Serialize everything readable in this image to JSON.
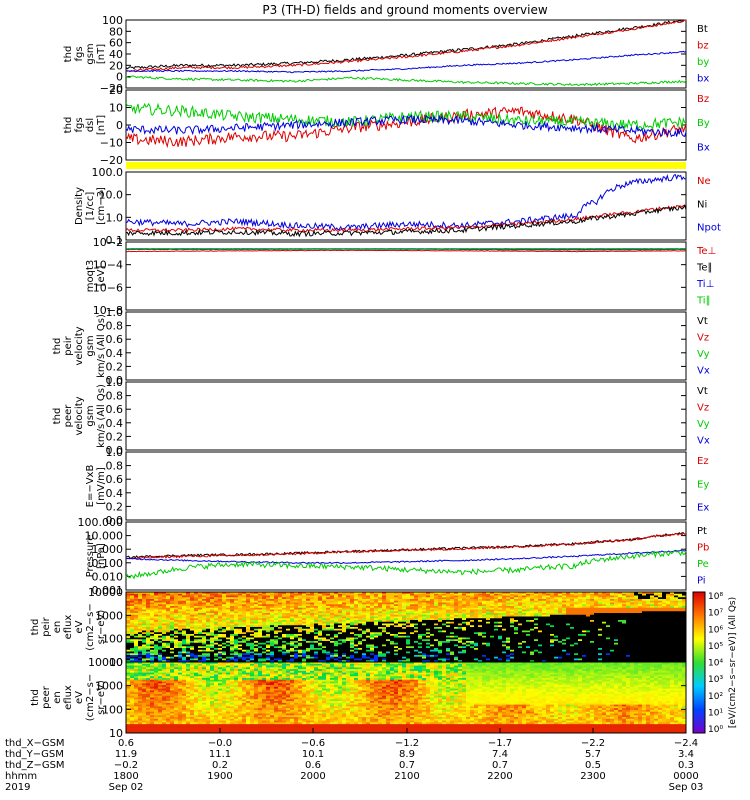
{
  "chart_data": {
    "type": "line",
    "title": "P3 (TH-D) fields and ground moments overview",
    "panels": [
      {
        "id": "fgs_gsm",
        "ylabel": [
          "thd",
          "fgs",
          "gsm",
          "[nT]"
        ],
        "ylim": [
          -20,
          100
        ],
        "yticks": [
          "100",
          "80",
          "60",
          "40",
          "20",
          "0",
          "−20"
        ],
        "legend": [
          {
            "name": "Bt",
            "color": "#000000"
          },
          {
            "name": "bz",
            "color": "#dd0000"
          },
          {
            "name": "by",
            "color": "#00cc00"
          },
          {
            "name": "bx",
            "color": "#0000dd"
          }
        ],
        "series": [
          {
            "name": "Bt",
            "color": "#000000",
            "noise": 2.5,
            "x": [
              0,
              0.5,
              1.0,
              1.5,
              2.0,
              2.5,
              3.0,
              3.5,
              4.0,
              4.5,
              4.98
            ],
            "y": [
              15,
              20,
              20,
              24,
              30,
              38,
              48,
              58,
              72,
              86,
              100
            ]
          },
          {
            "name": "bz",
            "color": "#dd0000",
            "noise": 2.0,
            "x": [
              0,
              0.5,
              1.0,
              1.5,
              2.0,
              2.5,
              3.0,
              3.5,
              4.0,
              4.5,
              4.98
            ],
            "y": [
              10,
              16,
              16,
              20,
              27,
              35,
              45,
              56,
              70,
              84,
              99
            ]
          },
          {
            "name": "by",
            "color": "#00cc00",
            "noise": 2.0,
            "x": [
              0,
              0.5,
              1.0,
              1.5,
              2.0,
              2.5,
              3.0,
              3.5,
              4.0,
              4.5,
              4.98
            ],
            "y": [
              0,
              -4,
              -6,
              -8,
              -2,
              -6,
              -10,
              -12,
              -14,
              -12,
              -8
            ]
          },
          {
            "name": "bx",
            "color": "#0000dd",
            "noise": 1.2,
            "x": [
              0,
              0.5,
              1.0,
              1.5,
              2.0,
              2.5,
              3.0,
              3.5,
              4.0,
              4.5,
              4.98
            ],
            "y": [
              10,
              10,
              10,
              8,
              10,
              14,
              20,
              24,
              30,
              38,
              44
            ]
          }
        ]
      },
      {
        "id": "fgs_dsl",
        "ylabel": [
          "thd",
          "fgs",
          "dsl",
          "[nT]"
        ],
        "ylim": [
          -25,
          25
        ],
        "yticks": [
          "20",
          "10",
          "0",
          "−10",
          "−20"
        ],
        "legend": [
          {
            "name": "Bz",
            "color": "#dd0000"
          },
          {
            "name": "By",
            "color": "#00cc00"
          },
          {
            "name": "Bx",
            "color": "#0000dd"
          }
        ],
        "series": [
          {
            "name": "Bz",
            "color": "#dd0000",
            "noise": 4.0,
            "x": [
              0,
              0.5,
              1.0,
              1.5,
              2.0,
              2.5,
              3.0,
              3.5,
              4.0,
              4.5,
              4.98
            ],
            "y": [
              -10,
              -12,
              -8,
              -8,
              -2,
              2,
              7,
              10,
              4,
              -10,
              -2
            ]
          },
          {
            "name": "By",
            "color": "#00cc00",
            "noise": 4.0,
            "x": [
              0,
              0.5,
              1.0,
              1.5,
              2.0,
              2.5,
              3.0,
              3.5,
              4.0,
              4.5,
              4.98
            ],
            "y": [
              12,
              10,
              6,
              4,
              2,
              6,
              6,
              3,
              2,
              0,
              2
            ]
          },
          {
            "name": "Bx",
            "color": "#0000dd",
            "noise": 3.0,
            "x": [
              0,
              0.5,
              1.0,
              1.5,
              2.0,
              2.5,
              3.0,
              3.5,
              4.0,
              4.5,
              4.98
            ],
            "y": [
              -3,
              -4,
              -2,
              0,
              2,
              4,
              3,
              0,
              -2,
              -4,
              -6
            ]
          }
        ]
      },
      {
        "id": "density",
        "ylabel": [
          "Density",
          "[1/cc]",
          "[cm−3]"
        ],
        "ylog": true,
        "ylim": [
          0.1,
          200
        ],
        "yticks": [
          "100.0",
          "10.0",
          "1.0",
          "0.1"
        ],
        "legend": [
          {
            "name": "Ne",
            "color": "#dd0000"
          },
          {
            "name": "Ni",
            "color": "#000000"
          },
          {
            "name": "Npot",
            "color": "#0000dd"
          }
        ],
        "series": [
          {
            "name": "Npot",
            "color": "#0000dd",
            "noise": 0.15,
            "x": [
              0,
              0.5,
              1.0,
              1.5,
              2.0,
              2.5,
              3.0,
              3.5,
              4.0,
              4.2,
              4.5,
              4.98
            ],
            "y": [
              0.8,
              0.6,
              0.8,
              0.5,
              0.4,
              0.6,
              0.5,
              0.8,
              1.5,
              8,
              60,
              120
            ]
          },
          {
            "name": "Ne",
            "color": "#dd0000",
            "noise": 0.08,
            "x": [
              0,
              0.5,
              1.0,
              1.5,
              2.0,
              2.5,
              3.0,
              3.5,
              4.0,
              4.5,
              4.98
            ],
            "y": [
              0.3,
              0.3,
              0.35,
              0.3,
              0.3,
              0.35,
              0.4,
              0.6,
              1.0,
              2.2,
              4.5
            ]
          },
          {
            "name": "Ni",
            "color": "#000000",
            "noise": 0.12,
            "x": [
              0,
              0.5,
              1.0,
              1.5,
              2.0,
              2.5,
              3.0,
              3.5,
              4.0,
              4.5,
              4.98
            ],
            "y": [
              0.22,
              0.22,
              0.25,
              0.2,
              0.22,
              0.25,
              0.3,
              0.5,
              0.8,
              1.8,
              3.8
            ]
          }
        ]
      },
      {
        "id": "moqt3",
        "ylabel": [
          "moqt3",
          "[eV]"
        ],
        "ylog": true,
        "ylim": [
          1e-10,
          1
        ],
        "yticks": [
          "10−2",
          "10−4",
          "10−6",
          "10−8"
        ],
        "legend": [
          {
            "name": "Te⊥",
            "color": "#dd0000"
          },
          {
            "name": "Te∥",
            "color": "#000000"
          },
          {
            "name": "Ti⊥",
            "color": "#0000dd"
          },
          {
            "name": "Ti∥",
            "color": "#00cc00"
          }
        ],
        "series": [
          {
            "name": "Te⊥",
            "color": "#dd0000",
            "noise": 0.03,
            "x": [
              0,
              1,
              2,
              3,
              4,
              4.98
            ],
            "y": [
              0.04,
              0.05,
              0.06,
              0.05,
              0.04,
              0.05
            ]
          },
          {
            "name": "Te∥",
            "color": "#000000",
            "noise": 0.02,
            "x": [
              0,
              1,
              2,
              3,
              4,
              4.98
            ],
            "y": [
              0.08,
              0.08,
              0.09,
              0.08,
              0.07,
              0.08
            ]
          },
          {
            "name": "Ti⊥",
            "color": "#0000dd",
            "noise": 0.01,
            "x": [
              0,
              1,
              2,
              3,
              4,
              4.98
            ],
            "y": [
              0.1,
              0.1,
              0.1,
              0.1,
              0.1,
              0.1
            ]
          },
          {
            "name": "Ti∥",
            "color": "#00cc00",
            "noise": 0.01,
            "x": [
              0,
              1,
              2,
              3,
              4,
              4.98
            ],
            "y": [
              0.09,
              0.09,
              0.09,
              0.09,
              0.09,
              0.09
            ]
          }
        ]
      },
      {
        "id": "peir_vel",
        "ylabel": [
          "thd",
          "peir",
          "velocity",
          "gsm",
          "km/s (All Qs)"
        ],
        "ylim": [
          0,
          1
        ],
        "yticks": [
          "1.0",
          "0.8",
          "0.6",
          "0.4",
          "0.2",
          "0.0"
        ],
        "legend": [
          {
            "name": "Vt",
            "color": "#000000"
          },
          {
            "name": "Vz",
            "color": "#dd0000"
          },
          {
            "name": "Vy",
            "color": "#00cc00"
          },
          {
            "name": "Vx",
            "color": "#0000dd"
          }
        ],
        "series": []
      },
      {
        "id": "peer_vel",
        "ylabel": [
          "thd",
          "peer",
          "velocity",
          "gsm",
          "km/s (All Qs)"
        ],
        "ylim": [
          0,
          1
        ],
        "yticks": [
          "1.0",
          "0.8",
          "0.6",
          "0.4",
          "0.2",
          "0.0"
        ],
        "legend": [
          {
            "name": "Vt",
            "color": "#000000"
          },
          {
            "name": "Vz",
            "color": "#dd0000"
          },
          {
            "name": "Vy",
            "color": "#00cc00"
          },
          {
            "name": "Vx",
            "color": "#0000dd"
          }
        ],
        "series": []
      },
      {
        "id": "efield",
        "ylabel": [
          "E=−VxB",
          "[mV/m]"
        ],
        "ylim": [
          0,
          1
        ],
        "yticks": [
          "1.0",
          "0.8",
          "0.6",
          "0.4",
          "0.2",
          "0.0"
        ],
        "legend": [
          {
            "name": "Ez",
            "color": "#dd0000"
          },
          {
            "name": "Ey",
            "color": "#00cc00"
          },
          {
            "name": "Ex",
            "color": "#0000dd"
          }
        ],
        "series": []
      },
      {
        "id": "pressure",
        "ylabel": [
          "Pressure",
          "[nPa]"
        ],
        "ylog": true,
        "ylim": [
          0.001,
          100
        ],
        "yticks": [
          "100.000",
          "10.000",
          "1.000",
          "0.100",
          "0.010",
          "0.001"
        ],
        "legend": [
          {
            "name": "Pt",
            "color": "#000000"
          },
          {
            "name": "Pb",
            "color": "#dd0000"
          },
          {
            "name": "Pe",
            "color": "#00cc00"
          },
          {
            "name": "Pi",
            "color": "#0000dd"
          }
        ],
        "series": [
          {
            "name": "Pt",
            "color": "#000000",
            "noise": 0.08,
            "x": [
              0,
              0.5,
              1.0,
              1.5,
              2.0,
              2.5,
              3.0,
              3.5,
              4.0,
              4.5,
              4.98
            ],
            "y": [
              0.25,
              0.35,
              0.4,
              0.5,
              0.7,
              0.9,
              1.2,
              1.6,
              2.5,
              5,
              15
            ]
          },
          {
            "name": "Pb",
            "color": "#dd0000",
            "noise": 0.08,
            "x": [
              0,
              0.5,
              1.0,
              1.5,
              2.0,
              2.5,
              3.0,
              3.5,
              4.0,
              4.5,
              4.98
            ],
            "y": [
              0.2,
              0.3,
              0.35,
              0.45,
              0.65,
              0.85,
              1.1,
              1.5,
              2.4,
              4.8,
              14
            ]
          },
          {
            "name": "Pi",
            "color": "#0000dd",
            "noise": 0.05,
            "x": [
              0,
              0.5,
              1.0,
              1.5,
              2.0,
              2.5,
              3.0,
              3.5,
              4.0,
              4.5,
              4.98
            ],
            "y": [
              0.2,
              0.15,
              0.12,
              0.1,
              0.1,
              0.12,
              0.15,
              0.2,
              0.3,
              0.5,
              0.8
            ]
          },
          {
            "name": "Pe",
            "color": "#00cc00",
            "noise": 0.2,
            "x": [
              0,
              0.3,
              0.6,
              1.0,
              1.5,
              2.0,
              2.5,
              3.0,
              3.5,
              4.0,
              4.5,
              4.98
            ],
            "y": [
              0.008,
              0.02,
              0.05,
              0.08,
              0.06,
              0.05,
              0.03,
              0.02,
              0.03,
              0.06,
              0.3,
              0.6
            ]
          }
        ]
      },
      {
        "id": "peir_en",
        "ylabel": [
          "thd",
          "peir",
          "en",
          "eflux",
          "eV",
          "(cm2−s−",
          "sr−eV)"
        ],
        "spectrogram": "ion",
        "ylog": true,
        "ylim": [
          5,
          25000
        ],
        "yticks": [
          "10000",
          "1000",
          "100",
          "10"
        ]
      },
      {
        "id": "peer_en",
        "ylabel": [
          "thd",
          "peer",
          "en",
          "eflux",
          "eV",
          "(cm2−s−",
          "sr−eV)"
        ],
        "spectrogram": "electron",
        "ylog": true,
        "ylim": [
          5,
          25000
        ],
        "yticks": [
          "10000",
          "1000",
          "100",
          "10"
        ]
      }
    ],
    "colorbar": {
      "label": "[eV/(cm2−s−sr−eV)] (All Qs)",
      "ticks": [
        "10⁸",
        "10⁷",
        "10⁶",
        "10⁵",
        "10⁴",
        "10³",
        "10²",
        "10¹",
        "10⁰"
      ]
    },
    "x_axis": {
      "rows": [
        {
          "name": "thd_X−GSM",
          "values": [
            "0.6",
            "−0.0",
            "−0.6",
            "−1.2",
            "−1.7",
            "−2.2",
            "−2.4"
          ]
        },
        {
          "name": "thd_Y−GSM",
          "values": [
            "11.9",
            "11.1",
            "10.1",
            "8.9",
            "7.4",
            "5.7",
            "3.4"
          ]
        },
        {
          "name": "thd_Z−GSM",
          "values": [
            "−0.2",
            "0.2",
            "0.6",
            "0.7",
            "0.7",
            "0.5",
            "0.3"
          ]
        },
        {
          "name": "hhmm",
          "values": [
            "1800",
            "1900",
            "2000",
            "2100",
            "2200",
            "2300",
            "0000"
          ]
        },
        {
          "name": "2019",
          "values": [
            "Sep 02",
            "",
            "",
            "",
            "",
            "",
            "Sep 03"
          ]
        }
      ]
    }
  }
}
